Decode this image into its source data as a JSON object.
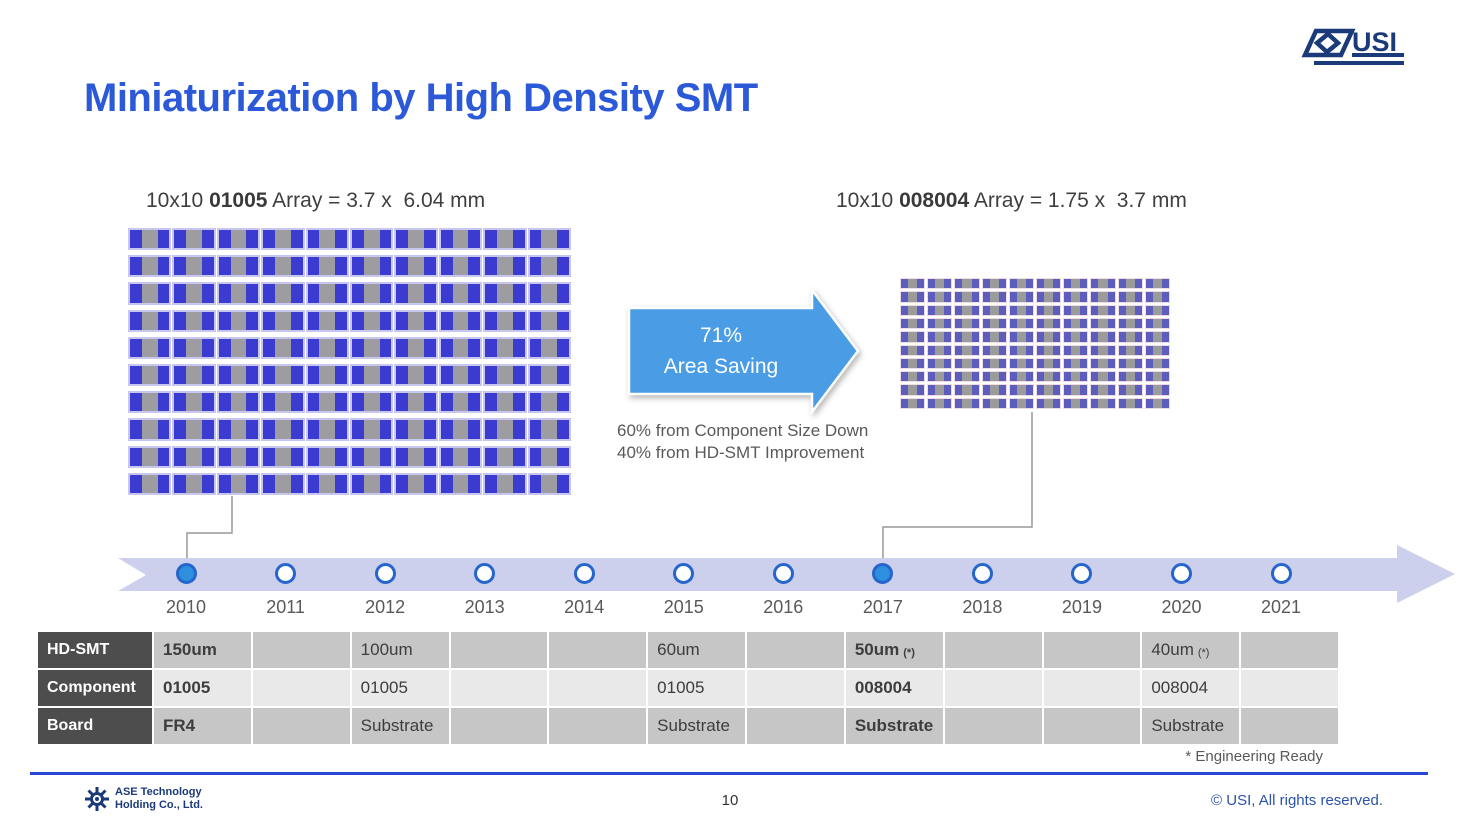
{
  "slide": {
    "title": "Miniaturization by High Density SMT"
  },
  "logo": {
    "name": "USI",
    "color": "#1b3a7a"
  },
  "left_array": {
    "caption": {
      "prefix": "10x10 ",
      "code": "01005",
      "rest": " Array = 3.7 x  6.04 mm"
    },
    "grid": {
      "rows": 10,
      "cols": 10
    },
    "pad_color": "#3b3bd2",
    "body_color": "#9c9ca1"
  },
  "right_array": {
    "caption": {
      "prefix": "10x10 ",
      "code": "008004",
      "rest": " Array = 1.75 x  3.7 mm"
    },
    "grid": {
      "rows": 10,
      "cols": 10
    },
    "pad_color": "#5d5dbe",
    "body_color": "#9b9b9b"
  },
  "arrow": {
    "line1": "71%",
    "line2": "Area Saving",
    "color": "#4a9de4"
  },
  "notes": [
    "60% from Component Size Down",
    "40% from HD-SMT Improvement"
  ],
  "timeline": {
    "years": [
      "2010",
      "2011",
      "2012",
      "2013",
      "2014",
      "2015",
      "2016",
      "2017",
      "2018",
      "2019",
      "2020",
      "2021"
    ],
    "filled_indices": [
      0,
      7
    ],
    "band_color": "#ccd0ec",
    "dot_border": "#2565cc",
    "dot_fill": "#2f8fdf"
  },
  "table": {
    "columns": 12,
    "rows": [
      {
        "header": "HD-SMT",
        "cells": [
          {
            "t": "150um",
            "b": 1
          },
          null,
          {
            "t": "100um"
          },
          null,
          null,
          {
            "t": "60um"
          },
          null,
          {
            "t": "50um",
            "s": "(*)",
            "b": 1
          },
          null,
          null,
          {
            "t": "40um",
            "s": "(*)"
          },
          null
        ]
      },
      {
        "header": "Component",
        "cells": [
          {
            "t": "01005",
            "b": 1
          },
          null,
          {
            "t": "01005"
          },
          null,
          null,
          {
            "t": "01005"
          },
          null,
          {
            "t": "008004",
            "b": 1
          },
          null,
          null,
          {
            "t": "008004"
          },
          null
        ]
      },
      {
        "header": "Board",
        "cells": [
          {
            "t": "FR4",
            "b": 1
          },
          null,
          {
            "t": "Substrate"
          },
          null,
          null,
          {
            "t": "Substrate"
          },
          null,
          {
            "t": "Substrate",
            "b": 1
          },
          null,
          null,
          {
            "t": "Substrate"
          },
          null
        ]
      }
    ]
  },
  "footnote": "* Engineering Ready",
  "footer": {
    "company_line1": "ASE Technology",
    "company_line2": "Holding Co., Ltd.",
    "page": "10",
    "copyright": "© USI, All rights reserved."
  }
}
